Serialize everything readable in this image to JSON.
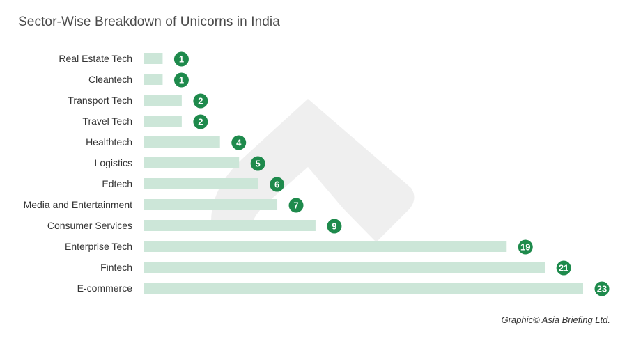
{
  "chart_data": {
    "type": "bar",
    "orientation": "horizontal",
    "title": "Sector-Wise Breakdown of Unicorns in India",
    "categories": [
      "Real Estate Tech",
      "Cleantech",
      "Transport Tech",
      "Travel Tech",
      "Healthtech",
      "Logistics",
      "Edtech",
      "Media and Entertainment",
      "Consumer Services",
      "Enterprise Tech",
      "Fintech",
      "E-commerce"
    ],
    "values": [
      1,
      1,
      2,
      2,
      4,
      5,
      6,
      7,
      9,
      19,
      21,
      23
    ],
    "xlim": [
      0,
      23
    ],
    "grid": false,
    "legend": "none",
    "data_labels": "badge at bar end"
  },
  "credit": "Graphic© Asia Briefing Ltd.",
  "colors": {
    "bar": "#cce6d8",
    "badge": "#1e8a4c",
    "badge_text": "#ffffff",
    "label_text": "#333333",
    "title_text": "#4a4a4a",
    "watermark": "#eeeeee"
  }
}
